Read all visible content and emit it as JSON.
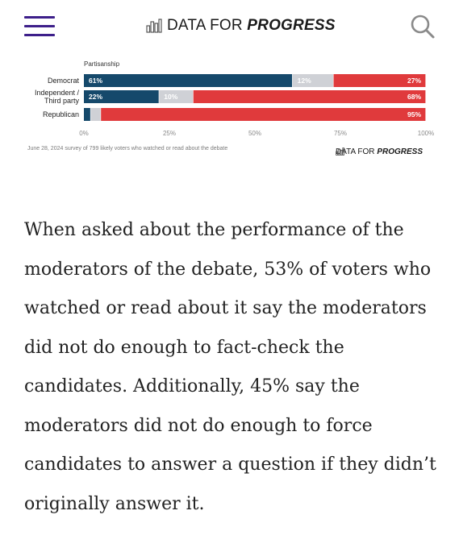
{
  "header": {
    "logo_text_plain": "DATA FOR",
    "logo_text_bold": "PROGRESS",
    "menu_icon": "hamburger-menu-icon",
    "search_icon": "search-icon",
    "menu_color": "#3d1f8a"
  },
  "chart_data": {
    "type": "bar",
    "orientation": "horizontal",
    "stacked": true,
    "title": "Partisanship",
    "categories": [
      "Democrat",
      "Independent / Third party",
      "Republican"
    ],
    "category_lines": [
      [
        "Democrat"
      ],
      [
        "Independent /",
        "Third party"
      ],
      [
        "Republican"
      ]
    ],
    "series": [
      {
        "values": [
          61,
          22,
          2
        ],
        "labels": [
          "61%",
          "22%",
          ""
        ],
        "color": "#15496b"
      },
      {
        "values": [
          12,
          10,
          3
        ],
        "labels": [
          "12%",
          "10%",
          ""
        ],
        "color": "#cfd1d6"
      },
      {
        "values": [
          27,
          68,
          95
        ],
        "labels": [
          "27%",
          "68%",
          "95%"
        ],
        "color": "#e03a3c"
      }
    ],
    "x_ticks": [
      "0%",
      "25%",
      "50%",
      "75%",
      "100%"
    ],
    "xlim": [
      0,
      100
    ],
    "grid": false,
    "footnote": "June 28, 2024 survey of 799 likely voters who watched or read about the debate",
    "source_logo_plain": "DATA FOR",
    "source_logo_bold": "PROGRESS"
  },
  "article": {
    "paragraph": "When asked about the performance of the moderators of the debate, 53% of voters who watched or read about it say the moderators did not do enough to fact-check the candidates. Additionally, 45% say the moderators did not do enough to force candidates to answer a question if they didn’t originally answer it."
  }
}
